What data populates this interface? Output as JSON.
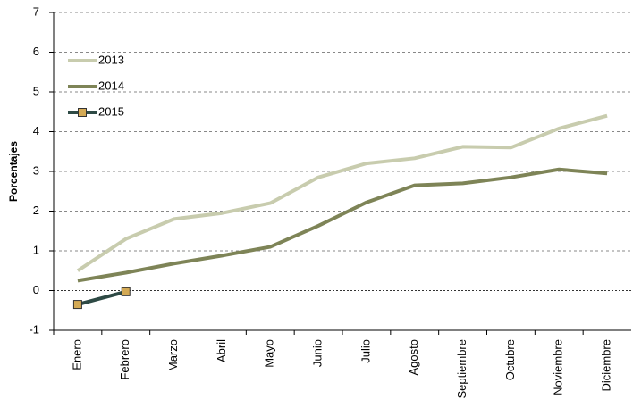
{
  "chart_data": {
    "type": "line",
    "y_label": "Porcentajes",
    "categories": [
      "Enero",
      "Febrero",
      "Marzo",
      "Abril",
      "Mayo",
      "Junio",
      "Julio",
      "Agosto",
      "Septiembre",
      "Octubre",
      "Noviembre",
      "Diciembre"
    ],
    "series": [
      {
        "name": "2013",
        "color": "#c8ccae",
        "values": [
          0.5,
          1.3,
          1.8,
          1.95,
          2.2,
          2.85,
          3.2,
          3.33,
          3.62,
          3.6,
          4.08,
          4.4
        ]
      },
      {
        "name": "2014",
        "color": "#7e8457",
        "values": [
          0.25,
          0.45,
          0.68,
          0.88,
          1.1,
          1.63,
          2.22,
          2.65,
          2.7,
          2.85,
          3.05,
          2.95
        ]
      },
      {
        "name": "2015",
        "color": "#2e4a45",
        "marker": "square",
        "marker_color": "#d4aa55",
        "values": [
          -0.35,
          -0.03,
          null,
          null,
          null,
          null,
          null,
          null,
          null,
          null,
          null,
          null
        ]
      }
    ],
    "ylim": [
      -1,
      7
    ],
    "yticks": [
      -1,
      0,
      1,
      2,
      3,
      4,
      5,
      6,
      7
    ],
    "grid": true,
    "legend": "upper left"
  }
}
